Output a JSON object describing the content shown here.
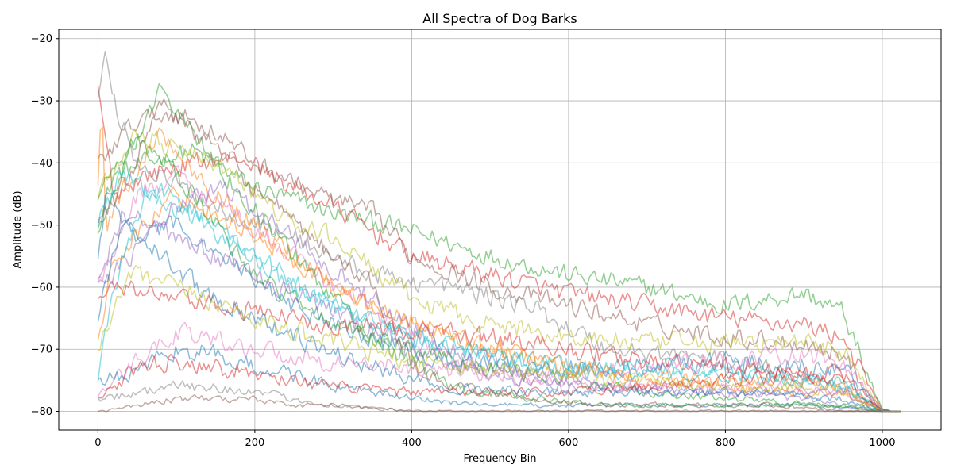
{
  "chart_data": {
    "type": "line",
    "title": "All Spectra of Dog Barks",
    "xlabel": "Frequency Bin",
    "ylabel": "Amplitude (dB)",
    "xlim": [
      -50,
      1075
    ],
    "ylim": [
      -83,
      -18.5
    ],
    "xticks": [
      0,
      200,
      400,
      600,
      800,
      1000
    ],
    "yticks": [
      -20,
      -30,
      -40,
      -50,
      -60,
      -70,
      -80
    ],
    "grid": true,
    "line_alpha": 0.5,
    "floor_db": -80,
    "n_bins": 1025,
    "palette": [
      "#1f77b4",
      "#ff7f0e",
      "#2ca02c",
      "#d62728",
      "#9467bd",
      "#8c564b",
      "#e377c2",
      "#7f7f7f",
      "#bcbd22",
      "#17becf"
    ],
    "series": [
      {
        "color": "#2ca02c",
        "x": [
          0,
          20,
          60,
          120,
          200,
          300,
          400,
          500,
          600,
          700,
          800,
          900,
          950,
          1000,
          1025
        ],
        "y": [
          -50,
          -42,
          -40,
          -38,
          -44,
          -48,
          -51,
          -55,
          -58,
          -60,
          -63,
          -61,
          -64,
          -80,
          -80
        ]
      },
      {
        "color": "#d62728",
        "x": [
          0,
          20,
          60,
          120,
          180,
          250,
          300,
          400,
          500,
          600,
          700,
          800,
          900,
          950,
          1000,
          1025
        ],
        "y": [
          -28,
          -45,
          -42,
          -40,
          -39,
          -44,
          -47,
          -55,
          -58,
          -61,
          -63,
          -65,
          -66,
          -68,
          -80,
          -80
        ]
      },
      {
        "color": "#8c564b",
        "x": [
          0,
          50,
          100,
          150,
          200,
          280,
          350,
          400,
          500,
          600,
          700,
          800,
          900,
          950,
          1000,
          1025
        ],
        "y": [
          -40,
          -33,
          -32,
          -35,
          -40,
          -45,
          -48,
          -55,
          -60,
          -63,
          -66,
          -68,
          -69,
          -71,
          -80,
          -80
        ]
      },
      {
        "color": "#7f7f7f",
        "x": [
          0,
          10,
          20,
          50,
          150,
          250,
          350,
          450,
          550,
          650,
          750,
          850,
          950,
          1000,
          1025
        ],
        "y": [
          -30,
          -22,
          -30,
          -40,
          -47,
          -52,
          -58,
          -60,
          -63,
          -70,
          -71,
          -73,
          -76,
          -80,
          -80
        ]
      },
      {
        "color": "#bcbd22",
        "x": [
          0,
          50,
          100,
          150,
          200,
          250,
          300,
          400,
          500,
          600,
          700,
          800,
          900,
          950,
          1000,
          1025
        ],
        "y": [
          -45,
          -35,
          -38,
          -40,
          -45,
          -50,
          -52,
          -62,
          -66,
          -68,
          -69,
          -69,
          -69,
          -70,
          -80,
          -80
        ]
      },
      {
        "color": "#ff7f0e",
        "x": [
          0,
          5,
          10,
          30,
          80,
          150,
          250,
          350,
          450,
          550,
          650,
          750,
          850,
          950,
          1000,
          1025
        ],
        "y": [
          -45,
          -29,
          -50,
          -45,
          -35,
          -45,
          -55,
          -63,
          -68,
          -72,
          -74,
          -75,
          -75,
          -76,
          -80,
          -80
        ]
      },
      {
        "color": "#e377c2",
        "x": [
          0,
          50,
          100,
          150,
          250,
          350,
          450,
          550,
          650,
          750,
          850,
          950,
          1000,
          1025
        ],
        "y": [
          -60,
          -45,
          -42,
          -46,
          -55,
          -64,
          -72,
          -75,
          -76,
          -76,
          -76,
          -77,
          -80,
          -80
        ]
      },
      {
        "color": "#1f77b4",
        "x": [
          0,
          10,
          50,
          100,
          150,
          250,
          350,
          450,
          550,
          650,
          750,
          850,
          950,
          1000,
          1025
        ],
        "y": [
          -55,
          -45,
          -52,
          -50,
          -54,
          -63,
          -68,
          -72,
          -73,
          -73,
          -72,
          -72,
          -73,
          -80,
          -80
        ]
      },
      {
        "color": "#17becf",
        "x": [
          0,
          30,
          100,
          150,
          250,
          350,
          450,
          550,
          650,
          750,
          850,
          950,
          1000,
          1025
        ],
        "y": [
          -50,
          -42,
          -46,
          -50,
          -60,
          -66,
          -70,
          -72,
          -73,
          -73,
          -74,
          -75,
          -80,
          -80
        ]
      },
      {
        "color": "#9467bd",
        "x": [
          0,
          30,
          100,
          200,
          300,
          400,
          500,
          600,
          700,
          800,
          900,
          950,
          1000,
          1025
        ],
        "y": [
          -60,
          -48,
          -52,
          -58,
          -64,
          -70,
          -74,
          -76,
          -76,
          -77,
          -78,
          -79,
          -80,
          -80
        ]
      },
      {
        "color": "#2ca02c",
        "x": [
          0,
          50,
          100,
          150,
          200,
          300,
          400,
          500,
          600,
          700,
          800,
          950,
          1025
        ],
        "y": [
          -50,
          -36,
          -42,
          -50,
          -58,
          -66,
          -70,
          -73,
          -75,
          -77,
          -78,
          -79,
          -80
        ]
      },
      {
        "color": "#d62728",
        "x": [
          0,
          30,
          100,
          200,
          300,
          400,
          500,
          600,
          700,
          800,
          900,
          950,
          1000,
          1025
        ],
        "y": [
          -62,
          -60,
          -62,
          -64,
          -66,
          -67,
          -68,
          -70,
          -72,
          -73,
          -74,
          -75,
          -80,
          -80
        ]
      },
      {
        "color": "#e377c2",
        "x": [
          0,
          30,
          100,
          200,
          300,
          400,
          500,
          600,
          700,
          800,
          900,
          950,
          1000,
          1025
        ],
        "y": [
          -78,
          -74,
          -67,
          -70,
          -72,
          -73,
          -74,
          -74,
          -73,
          -72,
          -71,
          -72,
          -80,
          -80
        ]
      },
      {
        "color": "#1f77b4",
        "x": [
          0,
          50,
          100,
          150,
          200,
          250,
          300,
          400,
          500,
          700,
          900,
          1025
        ],
        "y": [
          -75,
          -74,
          -70,
          -71,
          -73,
          -74,
          -76,
          -78,
          -79,
          -79,
          -79,
          -80
        ]
      },
      {
        "color": "#7f7f7f",
        "x": [
          0,
          50,
          100,
          150,
          200,
          250,
          300,
          400,
          500,
          700,
          900,
          1025
        ],
        "y": [
          -78,
          -77,
          -76,
          -76,
          -77,
          -78,
          -79,
          -80,
          -80,
          -80,
          -80,
          -80
        ]
      },
      {
        "color": "#8c564b",
        "x": [
          0,
          50,
          100,
          150,
          200,
          250,
          300,
          400,
          500,
          700,
          900,
          1025
        ],
        "y": [
          -80,
          -79,
          -78,
          -78,
          -78,
          -79,
          -79,
          -80,
          -80,
          -80,
          -80,
          -80
        ]
      },
      {
        "color": "#ff7f0e",
        "x": [
          0,
          20,
          60,
          100,
          150,
          200,
          300,
          400,
          500,
          600,
          700,
          800,
          900,
          950,
          1000,
          1025
        ],
        "y": [
          -70,
          -55,
          -50,
          -45,
          -48,
          -52,
          -60,
          -66,
          -70,
          -73,
          -75,
          -76,
          -77,
          -77,
          -80,
          -80
        ]
      },
      {
        "color": "#2ca02c",
        "x": [
          0,
          30,
          80,
          150,
          250,
          350,
          450,
          550,
          650,
          750,
          850,
          950,
          1000,
          1025
        ],
        "y": [
          -45,
          -40,
          -28,
          -40,
          -55,
          -68,
          -76,
          -78,
          -79,
          -79,
          -79,
          -79,
          -80,
          -80
        ]
      },
      {
        "color": "#8c564b",
        "x": [
          0,
          40,
          80,
          150,
          250,
          350,
          400,
          450,
          550,
          650,
          750,
          850,
          950,
          1025
        ],
        "y": [
          -50,
          -42,
          -30,
          -38,
          -50,
          -60,
          -72,
          -76,
          -78,
          -79,
          -79,
          -79,
          -80,
          -80
        ]
      },
      {
        "color": "#9467bd",
        "x": [
          0,
          40,
          90,
          160,
          250,
          350,
          450,
          550,
          650,
          750,
          850,
          950,
          1000,
          1025
        ],
        "y": [
          -60,
          -55,
          -48,
          -44,
          -52,
          -62,
          -70,
          -74,
          -76,
          -77,
          -77,
          -77,
          -80,
          -80
        ]
      },
      {
        "color": "#17becf",
        "x": [
          0,
          20,
          60,
          110,
          200,
          300,
          400,
          500,
          600,
          700,
          800,
          900,
          950,
          1000,
          1025
        ],
        "y": [
          -75,
          -60,
          -45,
          -48,
          -55,
          -63,
          -68,
          -71,
          -73,
          -74,
          -74,
          -75,
          -76,
          -80,
          -80
        ]
      },
      {
        "color": "#d62728",
        "x": [
          0,
          40,
          80,
          120,
          200,
          300,
          400,
          500,
          600,
          700,
          800,
          900,
          950,
          1000,
          1025
        ],
        "y": [
          -78,
          -74,
          -72,
          -72,
          -74,
          -76,
          -77,
          -77,
          -77,
          -76,
          -75,
          -74,
          -74,
          -80,
          -80
        ]
      },
      {
        "color": "#1f77b4",
        "x": [
          0,
          30,
          80,
          150,
          250,
          350,
          450,
          550,
          650,
          750,
          850,
          950,
          1000,
          1025
        ],
        "y": [
          -65,
          -50,
          -55,
          -62,
          -68,
          -73,
          -76,
          -77,
          -77,
          -77,
          -77,
          -78,
          -80,
          -80
        ]
      },
      {
        "color": "#bcbd22",
        "x": [
          0,
          40,
          100,
          200,
          300,
          400,
          500,
          600,
          700,
          800,
          900,
          950,
          1000,
          1025
        ],
        "y": [
          -70,
          -58,
          -60,
          -65,
          -69,
          -72,
          -73,
          -74,
          -75,
          -76,
          -76,
          -77,
          -80,
          -80
        ]
      }
    ]
  }
}
